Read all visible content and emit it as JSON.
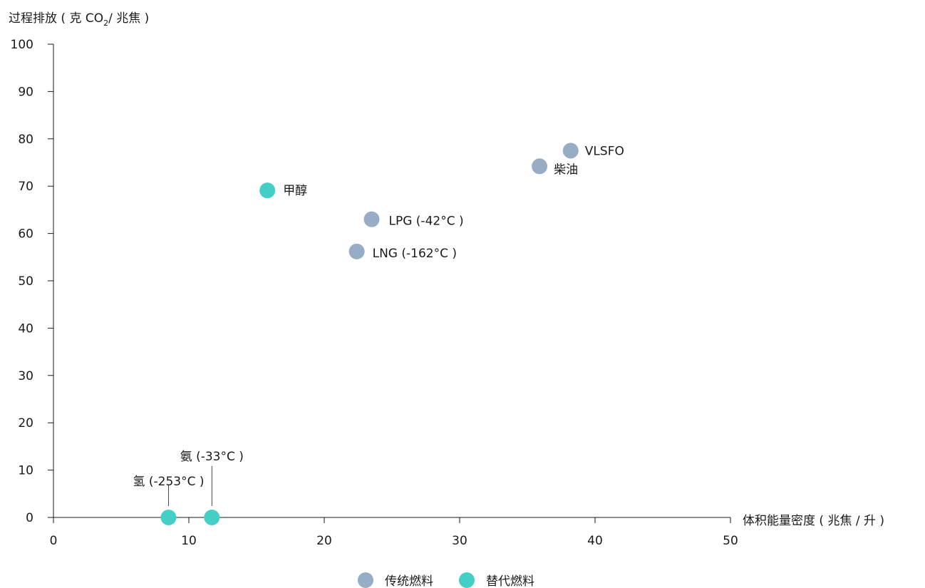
{
  "chart_data": {
    "type": "scatter",
    "ylabel_main": "过程排放 ( 克 CO",
    "ylabel_sub": "2",
    "ylabel_tail": "/ 兆焦 )",
    "xlabel": "体积能量密度 ( 兆焦 / 升 )",
    "xlim": [
      0,
      50
    ],
    "ylim": [
      0,
      100
    ],
    "xticks": [
      0,
      10,
      20,
      30,
      40,
      50
    ],
    "yticks": [
      0,
      10,
      20,
      30,
      40,
      50,
      60,
      70,
      80,
      90,
      100
    ],
    "grid": false,
    "legend_position": "bottom-center",
    "series": [
      {
        "name": "传统燃料",
        "color": "#97adc5",
        "points": [
          {
            "label": "VLSFO",
            "x": 38.2,
            "y": 77.5
          },
          {
            "label": "柴油",
            "x": 35.9,
            "y": 74.2
          },
          {
            "label": "LPG (-42°C )",
            "x": 23.5,
            "y": 63.0
          },
          {
            "label": "LNG (-162°C )",
            "x": 22.4,
            "y": 56.2
          }
        ]
      },
      {
        "name": "替代燃料",
        "color": "#44cfc6",
        "points": [
          {
            "label": "甲醇",
            "x": 15.8,
            "y": 69.1
          },
          {
            "label": "氢 (-253°C )",
            "x": 8.5,
            "y": 0
          },
          {
            "label": "氨 (-33°C )",
            "x": 11.7,
            "y": 0
          }
        ]
      }
    ]
  }
}
